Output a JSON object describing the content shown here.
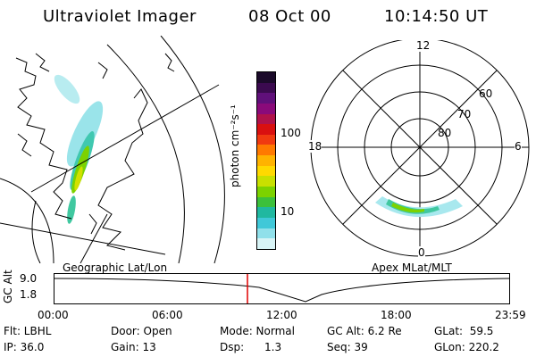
{
  "header": {
    "title": "Ultraviolet Imager",
    "date": "08 Oct 00",
    "time": "10:14:50 UT"
  },
  "colorbar": {
    "unit_label": "photon cm⁻²s⁻¹",
    "tick_labels": [
      "100",
      "10"
    ],
    "colors": [
      "#1b0a2a",
      "#3b0a4f",
      "#60107a",
      "#8a0a7a",
      "#b0124a",
      "#d91010",
      "#f03a10",
      "#ff7a00",
      "#ffb300",
      "#ffd900",
      "#c8e000",
      "#7cd200",
      "#3cc03c",
      "#20b8a0",
      "#40c8d8",
      "#90e0ea",
      "#d8f4f6"
    ]
  },
  "geo_panel": {
    "label": "Geographic Lat/Lon"
  },
  "polar_panel": {
    "label": "Apex MLat/MLT",
    "mlt_labels": {
      "top": "12",
      "right": "6",
      "bottom": "0",
      "left": "18"
    },
    "lat_labels": [
      "60",
      "70",
      "80"
    ]
  },
  "timeline": {
    "axis_label": "GC Alt",
    "y_ticks": [
      "9.0",
      "1.8"
    ],
    "x_ticks": [
      "00:00",
      "06:00",
      "12:00",
      "18:00",
      "23:59"
    ],
    "marker_color": "#e00000"
  },
  "info": {
    "flt": "Flt: LBHL",
    "door": "Door: Open",
    "mode": "Mode: Normal",
    "gc_alt": "GC Alt: 6.2 Re",
    "glat": "GLat:  59.5",
    "ip": "IP: 36.0",
    "gain": "Gain: 13",
    "dsp": "Dsp:      1.3",
    "seq": "Seq: 39",
    "glon": "GLon: 220.2"
  }
}
